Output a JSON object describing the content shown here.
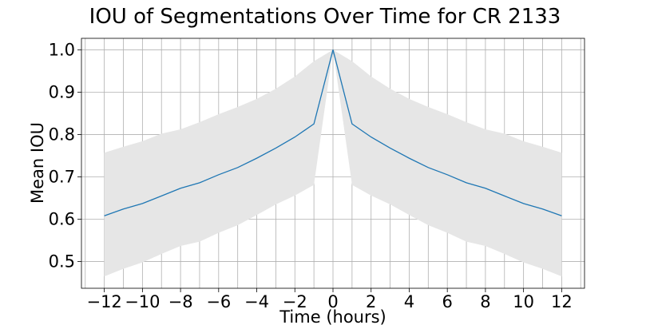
{
  "chart_data": {
    "type": "line",
    "title": "IOU of Segmentations Over Time for CR 2133",
    "xlabel": "Time (hours)",
    "ylabel": "Mean IOU",
    "x": [
      -12,
      -11,
      -10,
      -9,
      -8,
      -7,
      -6,
      -5,
      -4,
      -3,
      -2,
      -1,
      0,
      1,
      2,
      3,
      4,
      5,
      6,
      7,
      8,
      9,
      10,
      11,
      12
    ],
    "series": [
      {
        "mean": [
          0.608,
          0.624,
          0.637,
          0.655,
          0.673,
          0.686,
          0.705,
          0.722,
          0.744,
          0.768,
          0.794,
          0.825,
          1.0,
          0.825,
          0.794,
          0.768,
          0.744,
          0.722,
          0.705,
          0.686,
          0.673,
          0.655,
          0.637,
          0.624,
          0.608
        ],
        "upper": [
          0.757,
          0.771,
          0.784,
          0.802,
          0.812,
          0.829,
          0.848,
          0.865,
          0.884,
          0.908,
          0.937,
          0.973,
          1.0,
          0.973,
          0.937,
          0.908,
          0.884,
          0.865,
          0.848,
          0.829,
          0.812,
          0.802,
          0.784,
          0.771,
          0.757
        ],
        "lower": [
          0.465,
          0.483,
          0.498,
          0.518,
          0.537,
          0.547,
          0.568,
          0.586,
          0.61,
          0.635,
          0.656,
          0.681,
          1.0,
          0.681,
          0.656,
          0.635,
          0.61,
          0.586,
          0.568,
          0.547,
          0.537,
          0.518,
          0.498,
          0.483,
          0.465
        ],
        "color": "#1f77b4",
        "band_color": "#e6e6e6"
      }
    ],
    "xlim": [
      -13.2,
      13.2
    ],
    "ylim": [
      0.437,
      1.027
    ],
    "xticks": [
      -12,
      -10,
      -8,
      -6,
      -4,
      -2,
      0,
      2,
      4,
      6,
      8,
      10,
      12
    ],
    "xtick_labels": [
      "−12",
      "−10",
      "−8",
      "−6",
      "−4",
      "−2",
      "0",
      "2",
      "4",
      "6",
      "8",
      "10",
      "12"
    ],
    "yticks": [
      0.5,
      0.6,
      0.7,
      0.8,
      0.9,
      1.0
    ],
    "ytick_labels": [
      "0.5",
      "0.6",
      "0.7",
      "0.8",
      "0.9",
      "1.0"
    ],
    "xgrid_step": 1,
    "grid": true,
    "legend": "none"
  }
}
